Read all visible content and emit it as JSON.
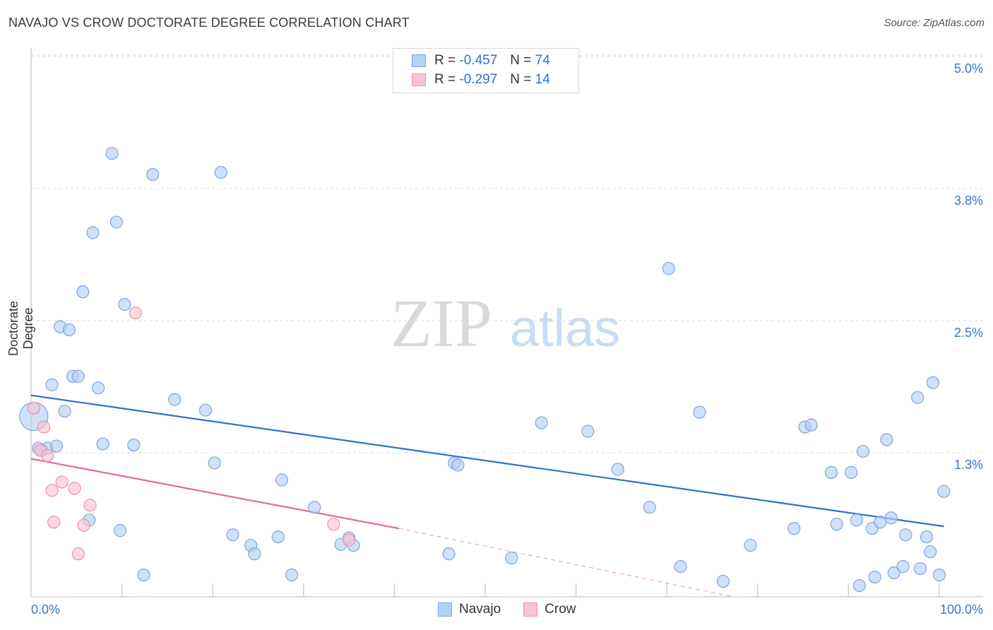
{
  "title": "NAVAJO VS CROW DOCTORATE DEGREE CORRELATION CHART",
  "source": "Source: ZipAtlas.com",
  "watermark": {
    "zip": "ZIP",
    "atlas": "atlas"
  },
  "legend": [
    {
      "r_label": "R =",
      "r_value": "-0.457",
      "n_label": "N =",
      "n_value": "74"
    },
    {
      "r_label": "R =",
      "r_value": "-0.297",
      "n_label": "N =",
      "n_value": "14"
    }
  ],
  "bottom_legend": {
    "navajo": "Navajo",
    "crow": "Crow"
  },
  "colors": {
    "navajo_fill": "#b6d0f4",
    "navajo_stroke": "#7aa6e0",
    "navajo_line": "#2f6fd6",
    "crow_fill": "#f8c4d3",
    "crow_stroke": "#ec92ad",
    "crow_line": "#e46a93",
    "tick_text": "#3e74c9",
    "grid": "#d9d9d9"
  },
  "chart_data": {
    "type": "scatter",
    "title": "NAVAJO VS CROW DOCTORATE DEGREE CORRELATION CHART",
    "xlabel": "",
    "ylabel": "Doctorate Degree",
    "xlim": [
      0,
      100
    ],
    "ylim": [
      0,
      5.2
    ],
    "x_tick_labels": [
      "0.0%",
      "100.0%"
    ],
    "y_ticks": [
      1.25,
      2.5,
      3.75,
      5.0
    ],
    "y_tick_labels": [
      "1.3%",
      "2.5%",
      "3.8%",
      "5.0%"
    ],
    "grid": "horizontal dashed",
    "series": [
      {
        "name": "Navajo",
        "points": [
          [
            0.3,
            1.7
          ],
          [
            0.8,
            1.4
          ],
          [
            1.2,
            1.38
          ],
          [
            1.8,
            1.4
          ],
          [
            2.3,
            2.0
          ],
          [
            2.8,
            1.42
          ],
          [
            3.2,
            2.55
          ],
          [
            3.7,
            1.75
          ],
          [
            4.2,
            2.52
          ],
          [
            4.6,
            2.08
          ],
          [
            5.2,
            2.08
          ],
          [
            5.7,
            2.88
          ],
          [
            6.4,
            0.72
          ],
          [
            6.8,
            3.44
          ],
          [
            7.4,
            1.97
          ],
          [
            7.9,
            1.44
          ],
          [
            8.9,
            4.19
          ],
          [
            9.4,
            3.54
          ],
          [
            9.8,
            0.62
          ],
          [
            10.3,
            2.76
          ],
          [
            11.3,
            1.43
          ],
          [
            12.4,
            0.2
          ],
          [
            13.4,
            3.99
          ],
          [
            15.8,
            1.86
          ],
          [
            19.2,
            1.76
          ],
          [
            20.2,
            1.26
          ],
          [
            20.9,
            4.01
          ],
          [
            22.2,
            0.58
          ],
          [
            24.2,
            0.48
          ],
          [
            24.6,
            0.4
          ],
          [
            27.2,
            0.56
          ],
          [
            27.6,
            1.1
          ],
          [
            28.7,
            0.2
          ],
          [
            31.2,
            0.84
          ],
          [
            34.1,
            0.49
          ],
          [
            35.0,
            0.55
          ],
          [
            35.5,
            0.48
          ],
          [
            46.0,
            0.4
          ],
          [
            46.6,
            1.26
          ],
          [
            47.0,
            1.24
          ],
          [
            52.9,
            0.36
          ],
          [
            56.2,
            1.64
          ],
          [
            61.3,
            1.56
          ],
          [
            64.6,
            1.2
          ],
          [
            68.1,
            0.84
          ],
          [
            70.2,
            3.1
          ],
          [
            71.5,
            0.28
          ],
          [
            73.6,
            1.74
          ],
          [
            76.2,
            0.14
          ],
          [
            79.2,
            0.48
          ],
          [
            84.0,
            0.64
          ],
          [
            85.2,
            1.6
          ],
          [
            85.9,
            1.62
          ],
          [
            88.1,
            1.17
          ],
          [
            88.7,
            0.68
          ],
          [
            90.3,
            1.17
          ],
          [
            90.9,
            0.72
          ],
          [
            91.2,
            0.1
          ],
          [
            91.6,
            1.37
          ],
          [
            92.6,
            0.64
          ],
          [
            92.9,
            0.18
          ],
          [
            93.5,
            0.7
          ],
          [
            94.2,
            1.48
          ],
          [
            94.7,
            0.74
          ],
          [
            95.0,
            0.22
          ],
          [
            96.0,
            0.28
          ],
          [
            96.3,
            0.58
          ],
          [
            97.6,
            1.88
          ],
          [
            97.9,
            0.26
          ],
          [
            98.6,
            0.56
          ],
          [
            99.0,
            0.42
          ],
          [
            99.3,
            2.02
          ],
          [
            100.0,
            0.2
          ],
          [
            100.5,
            0.99
          ]
        ],
        "trend": {
          "x0": 0,
          "y0": 1.9,
          "x1": 100.5,
          "y1": 0.66
        }
      },
      {
        "name": "Crow",
        "points": [
          [
            0.3,
            1.78
          ],
          [
            1.0,
            1.38
          ],
          [
            1.4,
            1.6
          ],
          [
            1.8,
            1.33
          ],
          [
            2.3,
            1.0
          ],
          [
            2.5,
            0.7
          ],
          [
            3.4,
            1.08
          ],
          [
            4.8,
            1.02
          ],
          [
            5.2,
            0.4
          ],
          [
            5.8,
            0.67
          ],
          [
            6.5,
            0.86
          ],
          [
            11.5,
            2.68
          ],
          [
            33.3,
            0.68
          ],
          [
            35.0,
            0.53
          ]
        ],
        "trend": {
          "x0": 0,
          "y0": 1.3,
          "x1": 40.5,
          "y1": 0.64,
          "dashed_to": {
            "x": 77.0,
            "y": 0.0
          }
        }
      }
    ]
  }
}
